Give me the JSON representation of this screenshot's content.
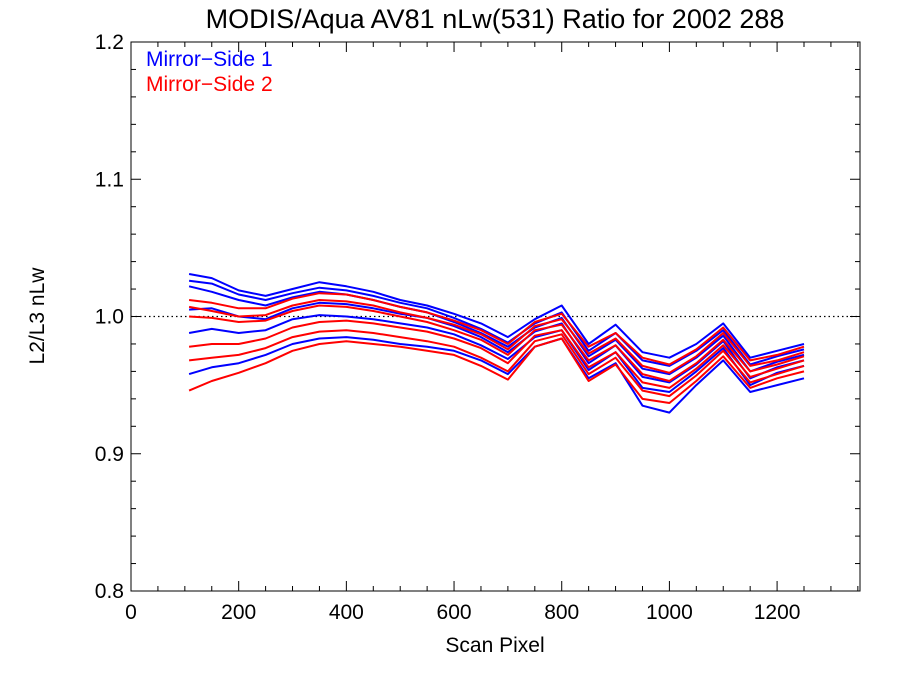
{
  "chart_data": {
    "type": "line",
    "title": "MODIS/Aqua AV81 nLw(531) Ratio for 2002 288",
    "xlabel": "Scan Pixel",
    "ylabel": "L2/L3 nLw",
    "xlim": [
      0,
      1354
    ],
    "ylim": [
      0.8,
      1.2
    ],
    "x_ticks": [
      0,
      200,
      400,
      600,
      800,
      1000,
      1200
    ],
    "x_tick_labels": [
      "0",
      "200",
      "400",
      "600",
      "800",
      "1000",
      "1200"
    ],
    "y_ticks": [
      0.8,
      0.9,
      1.0,
      1.1,
      1.2
    ],
    "y_tick_labels": [
      "0.8",
      "0.9",
      "1.0",
      "1.1",
      "1.2"
    ],
    "reference_line_y": 1.0,
    "legend_position": "top-left",
    "legend": [
      {
        "label": "Mirror−Side 1",
        "color": "#0000ff"
      },
      {
        "label": "Mirror−Side 2",
        "color": "#ff0000"
      }
    ],
    "x": [
      108,
      150,
      200,
      250,
      300,
      350,
      400,
      450,
      500,
      550,
      600,
      650,
      700,
      750,
      800,
      850,
      900,
      950,
      1000,
      1050,
      1100,
      1150,
      1200,
      1250
    ],
    "series": [
      {
        "group": 1,
        "color": "#0000ff",
        "values": [
          1.031,
          1.028,
          1.019,
          1.015,
          1.02,
          1.025,
          1.022,
          1.018,
          1.012,
          1.008,
          1.002,
          0.995,
          0.985,
          0.998,
          1.008,
          0.98,
          0.994,
          0.974,
          0.97,
          0.98,
          0.995,
          0.97,
          0.975,
          0.98
        ]
      },
      {
        "group": 1,
        "color": "#0000ff",
        "values": [
          1.026,
          1.024,
          1.016,
          1.012,
          1.017,
          1.021,
          1.019,
          1.015,
          1.01,
          1.006,
          0.999,
          0.991,
          0.981,
          0.995,
          1.003,
          0.975,
          0.988,
          0.968,
          0.964,
          0.975,
          0.99,
          0.965,
          0.971,
          0.976
        ]
      },
      {
        "group": 1,
        "color": "#0000ff",
        "values": [
          1.022,
          1.018,
          1.012,
          1.008,
          1.014,
          1.018,
          1.016,
          1.012,
          1.007,
          1.003,
          0.996,
          0.988,
          0.978,
          0.992,
          0.999,
          0.971,
          0.983,
          0.962,
          0.958,
          0.97,
          0.986,
          0.96,
          0.967,
          0.972
        ]
      },
      {
        "group": 1,
        "color": "#0000ff",
        "values": [
          1.005,
          1.006,
          1.0,
          0.998,
          1.006,
          1.01,
          1.009,
          1.006,
          1.002,
          0.999,
          0.993,
          0.985,
          0.974,
          0.989,
          0.995,
          0.966,
          0.979,
          0.956,
          0.952,
          0.965,
          0.982,
          0.955,
          0.963,
          0.968
        ]
      },
      {
        "group": 1,
        "color": "#0000ff",
        "values": [
          0.988,
          0.991,
          0.988,
          0.99,
          0.998,
          1.001,
          1.0,
          0.998,
          0.995,
          0.992,
          0.987,
          0.979,
          0.969,
          0.985,
          0.99,
          0.961,
          0.974,
          0.948,
          0.945,
          0.96,
          0.977,
          0.95,
          0.959,
          0.964
        ]
      },
      {
        "group": 1,
        "color": "#0000ff",
        "values": [
          0.958,
          0.963,
          0.966,
          0.972,
          0.98,
          0.984,
          0.985,
          0.983,
          0.98,
          0.978,
          0.975,
          0.968,
          0.958,
          0.978,
          0.984,
          0.955,
          0.966,
          0.935,
          0.93,
          0.95,
          0.968,
          0.945,
          0.95,
          0.955
        ]
      },
      {
        "group": 2,
        "color": "#ff0000",
        "values": [
          1.012,
          1.01,
          1.006,
          1.006,
          1.013,
          1.017,
          1.016,
          1.012,
          1.007,
          1.003,
          0.997,
          0.99,
          0.98,
          0.996,
          1.002,
          0.978,
          0.988,
          0.97,
          0.965,
          0.976,
          0.992,
          0.968,
          0.972,
          0.978
        ]
      },
      {
        "group": 2,
        "color": "#ff0000",
        "values": [
          1.007,
          1.004,
          1.0,
          1.001,
          1.008,
          1.012,
          1.011,
          1.008,
          1.003,
          0.999,
          0.994,
          0.987,
          0.976,
          0.993,
          0.998,
          0.973,
          0.984,
          0.964,
          0.959,
          0.971,
          0.988,
          0.964,
          0.968,
          0.974
        ]
      },
      {
        "group": 2,
        "color": "#ff0000",
        "values": [
          1.0,
          0.999,
          0.996,
          0.997,
          1.004,
          1.008,
          1.007,
          1.004,
          1.0,
          0.996,
          0.99,
          0.983,
          0.972,
          0.99,
          0.994,
          0.968,
          0.979,
          0.958,
          0.953,
          0.966,
          0.983,
          0.96,
          0.965,
          0.971
        ]
      },
      {
        "group": 2,
        "color": "#ff0000",
        "values": [
          0.978,
          0.98,
          0.98,
          0.984,
          0.992,
          0.996,
          0.997,
          0.995,
          0.992,
          0.989,
          0.984,
          0.977,
          0.966,
          0.986,
          0.99,
          0.963,
          0.974,
          0.952,
          0.948,
          0.962,
          0.979,
          0.956,
          0.962,
          0.968
        ]
      },
      {
        "group": 2,
        "color": "#ff0000",
        "values": [
          0.968,
          0.97,
          0.972,
          0.977,
          0.985,
          0.989,
          0.99,
          0.988,
          0.985,
          0.982,
          0.978,
          0.97,
          0.96,
          0.982,
          0.987,
          0.958,
          0.97,
          0.946,
          0.942,
          0.957,
          0.975,
          0.952,
          0.958,
          0.964
        ]
      },
      {
        "group": 2,
        "color": "#ff0000",
        "values": [
          0.946,
          0.953,
          0.959,
          0.966,
          0.975,
          0.98,
          0.982,
          0.98,
          0.978,
          0.975,
          0.972,
          0.964,
          0.954,
          0.978,
          0.984,
          0.953,
          0.965,
          0.94,
          0.937,
          0.953,
          0.971,
          0.948,
          0.955,
          0.96
        ]
      }
    ]
  }
}
